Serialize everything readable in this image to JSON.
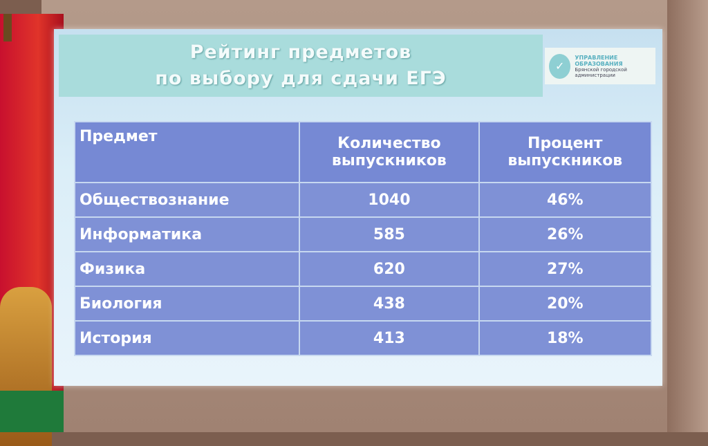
{
  "slide": {
    "title_line1": "Рейтинг предметов",
    "title_line2": "по выбору для сдачи ЕГЭ",
    "logo": {
      "line1": "УПРАВЛЕНИЕ ОБРАЗОВАНИЯ",
      "line2": "Брянской городской",
      "line3": "администрации"
    },
    "table": {
      "headers": [
        "Предмет",
        "Количество выпускников",
        "Процент выпускников"
      ],
      "rows": [
        [
          "Обществознание",
          "1040",
          "46%"
        ],
        [
          "Информатика",
          "585",
          "26%"
        ],
        [
          "Физика",
          "620",
          "27%"
        ],
        [
          "Биология",
          "438",
          "20%"
        ],
        [
          "История",
          "413",
          "18%"
        ]
      ]
    }
  },
  "colors": {
    "table_bg": "#7f91d6",
    "banner": "#a9dcdc",
    "flag": "#c8102e"
  }
}
